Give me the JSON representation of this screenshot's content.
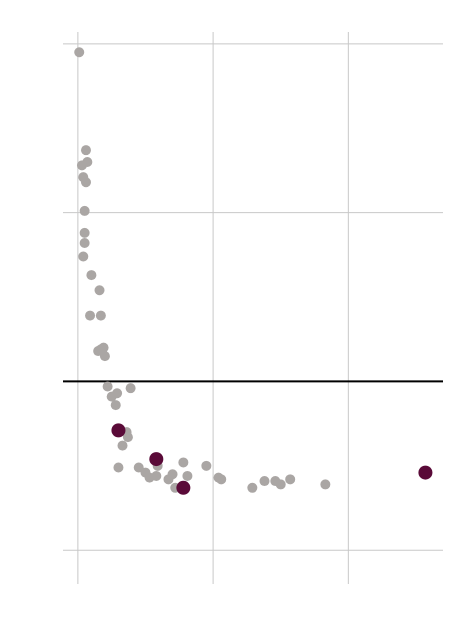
{
  "chart_data": {
    "type": "scatter",
    "xlim": [
      -0.11,
      2.7
    ],
    "ylim": [
      -0.2,
      3.07
    ],
    "xticks": [
      0,
      1,
      2
    ],
    "yticks": [
      0,
      1,
      2,
      3
    ],
    "grid": true,
    "hline": 1,
    "series": [
      {
        "color": "#aaa6a4",
        "x": [
          0.01,
          0.06,
          0.07,
          0.03,
          0.04,
          0.06,
          0.05,
          0.05,
          0.05,
          0.04,
          0.1,
          0.16,
          0.09,
          0.17,
          0.19,
          0.15,
          0.17,
          0.2,
          0.22,
          0.25,
          0.29,
          0.39,
          0.28,
          0.36,
          0.37,
          0.33,
          0.3,
          0.45,
          0.5,
          0.53,
          0.58,
          0.59,
          0.67,
          0.7,
          0.72,
          0.78,
          0.81,
          0.95,
          1.04,
          1.06,
          1.29,
          1.38,
          1.46,
          1.5,
          1.57,
          1.83
        ],
        "values": [
          2.95,
          2.37,
          2.3,
          2.28,
          2.21,
          2.18,
          2.01,
          1.88,
          1.82,
          1.74,
          1.63,
          1.54,
          1.39,
          1.39,
          1.2,
          1.18,
          1.19,
          1.15,
          0.97,
          0.91,
          0.93,
          0.96,
          0.86,
          0.7,
          0.67,
          0.62,
          0.49,
          0.49,
          0.46,
          0.43,
          0.44,
          0.5,
          0.42,
          0.45,
          0.37,
          0.52,
          0.44,
          0.5,
          0.43,
          0.42,
          0.37,
          0.41,
          0.41,
          0.39,
          0.42,
          0.39
        ]
      },
      {
        "color": "#5a0a38",
        "x": [
          0.3,
          0.58,
          0.78,
          2.57
        ],
        "values": [
          0.71,
          0.54,
          0.37,
          0.46
        ]
      }
    ]
  }
}
